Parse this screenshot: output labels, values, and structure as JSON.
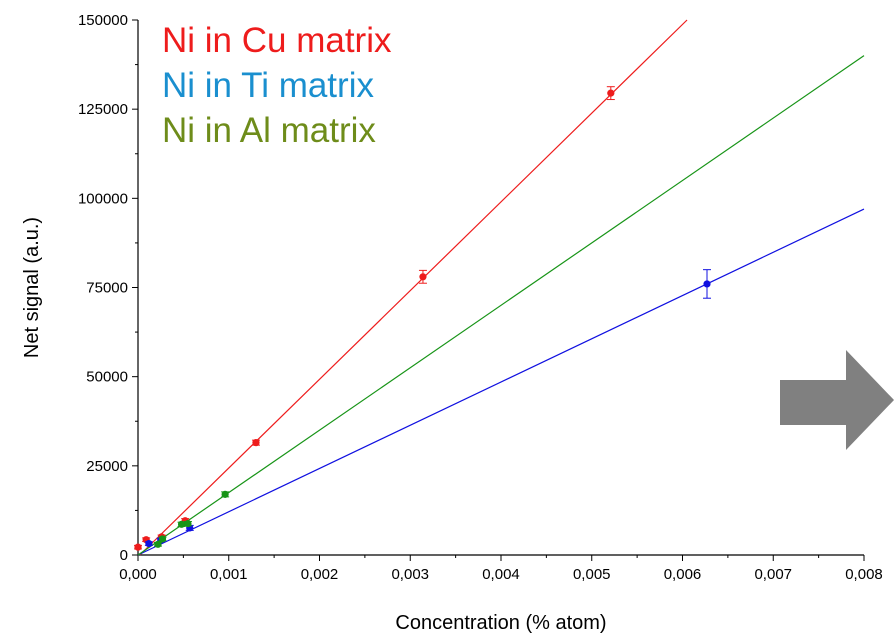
{
  "chart_data": {
    "type": "scatter",
    "xlabel": "Concentration (% atom)",
    "ylabel": "Net signal (a.u.)",
    "xlim": [
      0,
      0.008
    ],
    "ylim": [
      0,
      150000
    ],
    "x_ticks": [
      "0,000",
      "0,001",
      "0,002",
      "0,003",
      "0,004",
      "0,005",
      "0,006",
      "0,007",
      "0,008"
    ],
    "y_ticks": [
      "0",
      "25000",
      "50000",
      "75000",
      "100000",
      "125000",
      "150000"
    ],
    "grid": false,
    "legend_position": "top-left",
    "series": [
      {
        "name": "Ni in Cu matrix",
        "color": "#ee1c1c",
        "points": [
          {
            "x": 0.0,
            "y": 2200,
            "err": 500
          },
          {
            "x": 9e-05,
            "y": 4300,
            "err": 500
          },
          {
            "x": 0.00026,
            "y": 5100,
            "err": 500
          },
          {
            "x": 0.00052,
            "y": 9600,
            "err": 600
          },
          {
            "x": 0.0013,
            "y": 31500,
            "err": 700
          },
          {
            "x": 0.00314,
            "y": 78000,
            "err": 1800
          },
          {
            "x": 0.00521,
            "y": 129500,
            "err": 1800
          }
        ],
        "fit": {
          "x0": 2e-05,
          "y0": 0,
          "x1": 0.00605,
          "y1": 150000
        }
      },
      {
        "name": "Ni in Ti matrix",
        "color": "#1010e0",
        "points": [
          {
            "x": 0.00012,
            "y": 3200,
            "err": 500
          },
          {
            "x": 0.00025,
            "y": 4200,
            "err": 500
          },
          {
            "x": 0.00057,
            "y": 7600,
            "err": 700
          },
          {
            "x": 0.00627,
            "y": 76000,
            "err": 4000
          }
        ],
        "fit": {
          "x0": 0.0,
          "y0": 0,
          "x1": 0.008,
          "y1": 97000
        }
      },
      {
        "name": "Ni in Al matrix",
        "color": "#179417",
        "points": [
          {
            "x": 0.00022,
            "y": 3000,
            "err": 500
          },
          {
            "x": 0.00027,
            "y": 4500,
            "err": 500
          },
          {
            "x": 0.00048,
            "y": 8600,
            "err": 600
          },
          {
            "x": 0.00055,
            "y": 8800,
            "err": 600
          },
          {
            "x": 0.00096,
            "y": 17000,
            "err": 700
          }
        ],
        "fit": {
          "x0": 0.0,
          "y0": 0,
          "x1": 0.008,
          "y1": 140000
        }
      }
    ],
    "legend": [
      {
        "label": "Ni in Cu matrix",
        "color": "#ee1c1c"
      },
      {
        "label": "Ni in Ti matrix",
        "color": "#1a8fcf"
      },
      {
        "label": "Ni in Al matrix",
        "color": "#6e8c1a"
      }
    ],
    "annotations": [
      {
        "shape": "arrow-right",
        "color": "#808080"
      }
    ]
  }
}
